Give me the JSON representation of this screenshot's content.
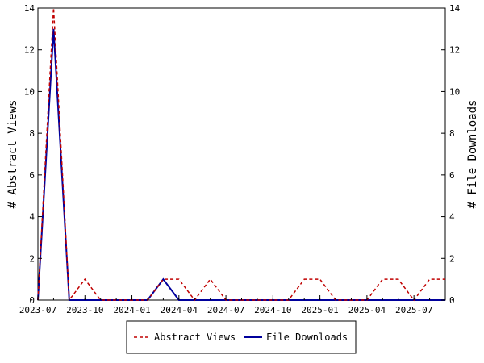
{
  "chart_data": {
    "type": "line",
    "ylabel_left": "# Abstract Views",
    "ylabel_right": "# File Downloads",
    "ylim": [
      0,
      14
    ],
    "y_ticks": [
      0,
      2,
      4,
      6,
      8,
      10,
      12,
      14
    ],
    "x_range": [
      "2023-07",
      "2025-09"
    ],
    "x_tick_labels": [
      "2023-07",
      "2023-10",
      "2024-01",
      "2024-04",
      "2024-07",
      "2024-10",
      "2025-01",
      "2025-04",
      "2025-07"
    ],
    "grid": false,
    "legend_position": "bottom-center",
    "x": [
      "2023-07",
      "2023-08",
      "2023-09",
      "2023-10",
      "2023-11",
      "2023-12",
      "2024-01",
      "2024-02",
      "2024-03",
      "2024-04",
      "2024-05",
      "2024-06",
      "2024-07",
      "2024-08",
      "2024-09",
      "2024-10",
      "2024-11",
      "2024-12",
      "2025-01",
      "2025-02",
      "2025-03",
      "2025-04",
      "2025-05",
      "2025-06",
      "2025-07",
      "2025-08",
      "2025-09"
    ],
    "series": [
      {
        "name": "Abstract Views",
        "axis": "left",
        "color": "#c00000",
        "dash": "dashed",
        "values": [
          0,
          14,
          0,
          1,
          0,
          0,
          0,
          0,
          1,
          1,
          0,
          1,
          0,
          0,
          0,
          0,
          0,
          1,
          1,
          0,
          0,
          0,
          1,
          1,
          0,
          1,
          1
        ]
      },
      {
        "name": "File Downloads",
        "axis": "right",
        "color": "#00009c",
        "dash": "solid",
        "values": [
          0,
          13,
          0,
          0,
          0,
          0,
          0,
          0,
          1,
          0,
          0,
          0,
          0,
          0,
          0,
          0,
          0,
          0,
          0,
          0,
          0,
          0,
          0,
          0,
          0,
          0,
          0
        ]
      }
    ]
  }
}
